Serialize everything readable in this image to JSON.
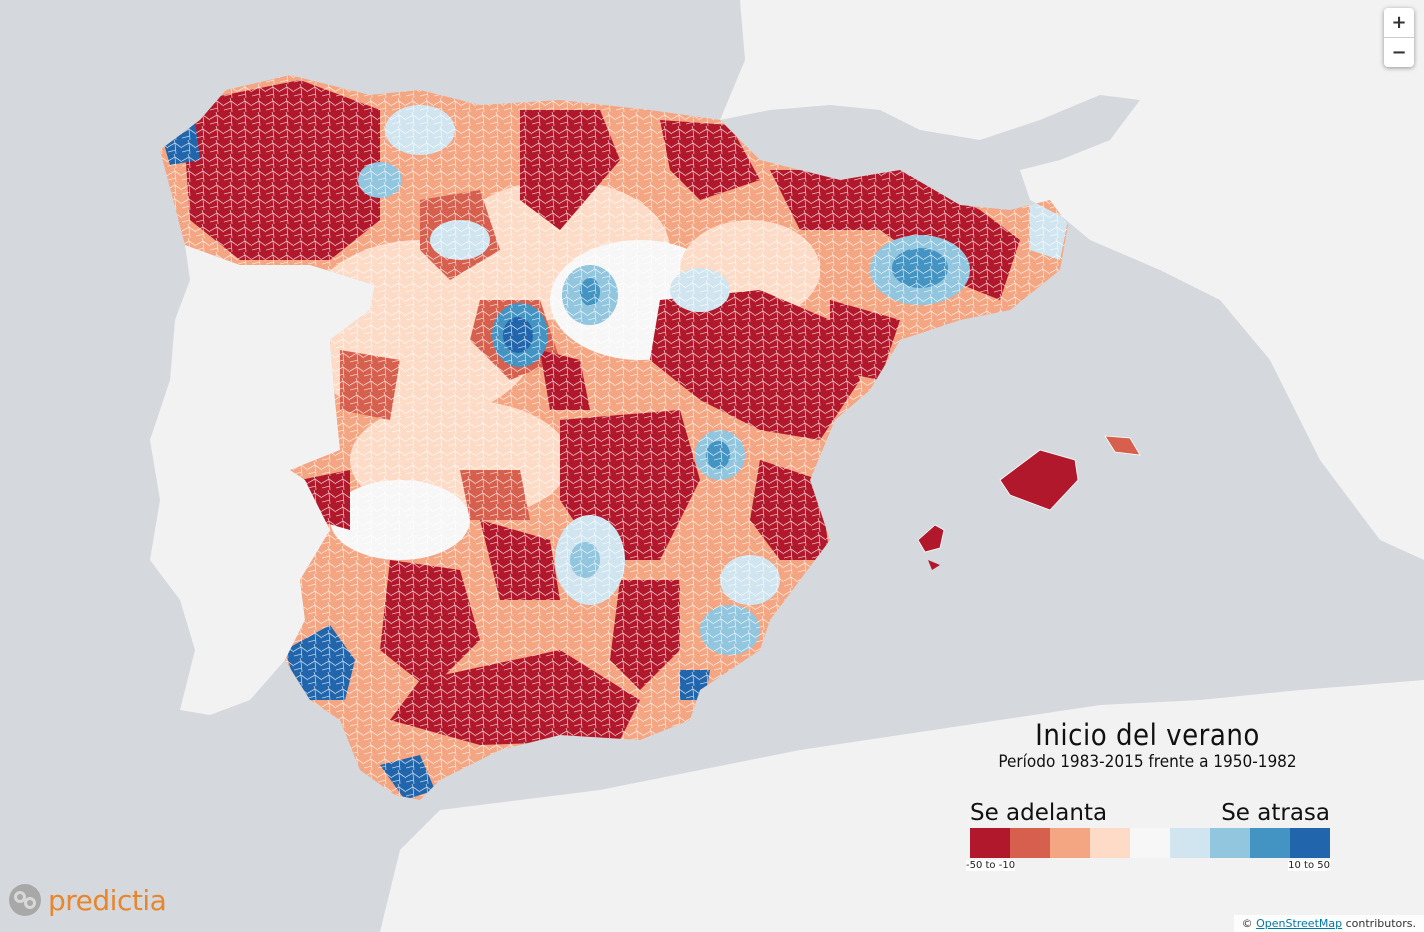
{
  "zoom": {
    "in_label": "+",
    "out_label": "−"
  },
  "legend": {
    "title": "Inicio del verano",
    "subtitle": "Período 1983-2015 frente a 1950-1982",
    "left_label": "Se adelanta",
    "right_label": "Se atrasa",
    "min_range": "-50 to -10",
    "max_range": "10 to 50",
    "colors": [
      "#b2182b",
      "#d6604d",
      "#f4a582",
      "#fddbc7",
      "#f7f7f7",
      "#d1e5f0",
      "#92c5de",
      "#4393c3",
      "#2166ac"
    ]
  },
  "logo": {
    "text": "predictia"
  },
  "attribution": {
    "prefix": "© ",
    "link": "OpenStreetMap",
    "suffix": " contributors."
  },
  "colors": {
    "sea": "#d5d8dc",
    "land": "#f2f2f2",
    "accent": "#e8862d"
  }
}
